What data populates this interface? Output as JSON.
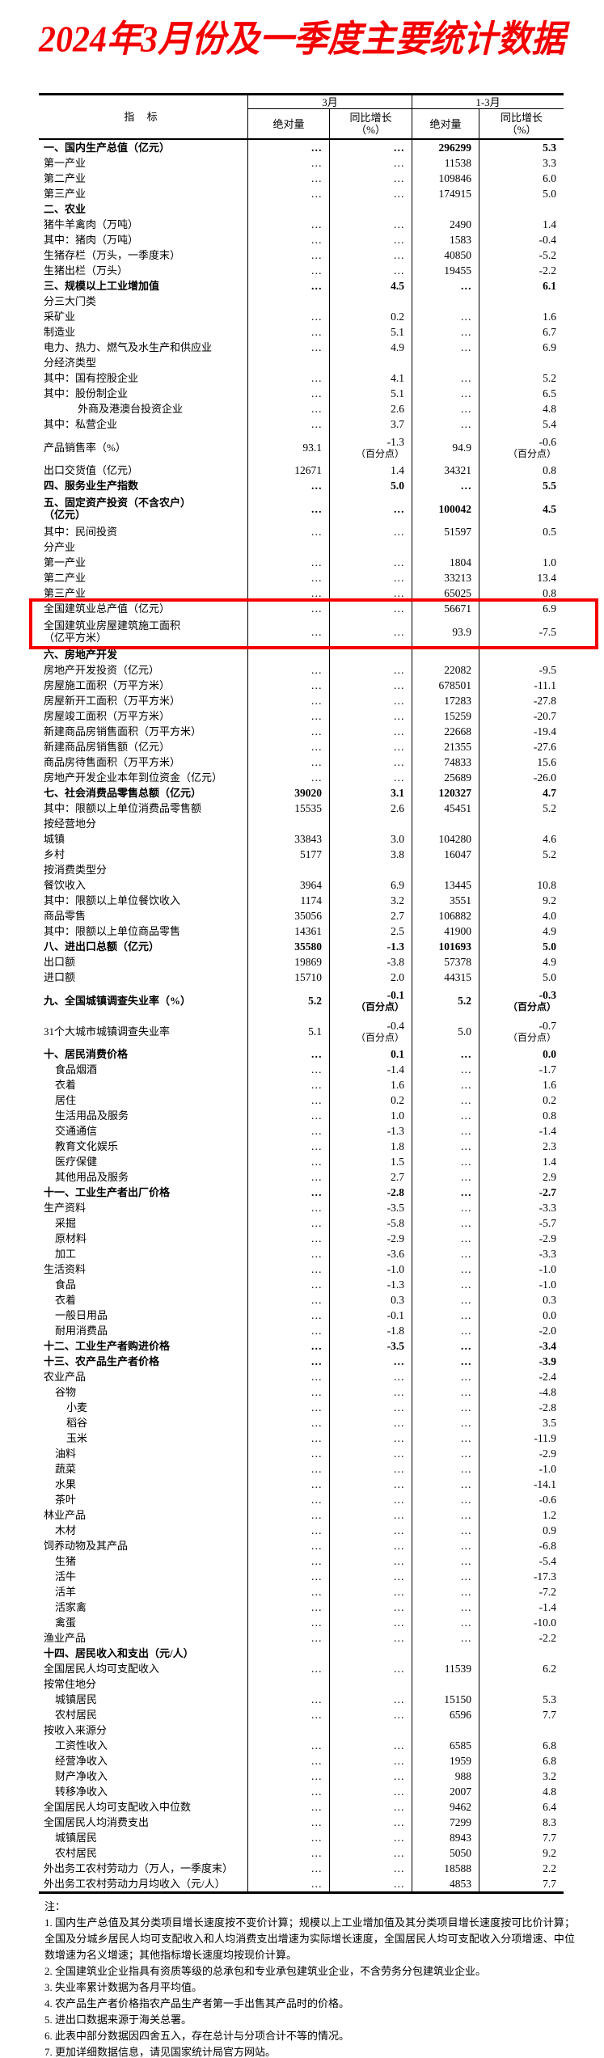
{
  "title": "2024年3月份及一季度主要统计数据",
  "colors": {
    "accent_red": "#f40000",
    "highlight_box_red": "#f40000",
    "text": "#000000",
    "background": "#ffffff"
  },
  "table": {
    "header": {
      "indicator": "指 标",
      "month": "3月",
      "quarter": "1-3月",
      "abs_month": "绝对量",
      "yoy_line1": "同比增长",
      "yoy_line2": "（%）",
      "abs_quarter": "绝对量"
    },
    "rows": [
      {
        "label": "一、国内生产总值（亿元）",
        "bold": true,
        "m_abs": "…",
        "m_yoy": "…",
        "q_abs": "296299",
        "q_yoy": "5.3"
      },
      {
        "label": "第一产业",
        "m_abs": "…",
        "m_yoy": "…",
        "q_abs": "11538",
        "q_yoy": "3.3"
      },
      {
        "label": "第二产业",
        "m_abs": "…",
        "m_yoy": "…",
        "q_abs": "109846",
        "q_yoy": "6.0"
      },
      {
        "label": "第三产业",
        "m_abs": "…",
        "m_yoy": "…",
        "q_abs": "174915",
        "q_yoy": "5.0"
      },
      {
        "label": "二、农业",
        "bold": true,
        "m_abs": "",
        "m_yoy": "",
        "q_abs": "",
        "q_yoy": ""
      },
      {
        "label": "猪牛羊禽肉（万吨）",
        "m_abs": "…",
        "m_yoy": "…",
        "q_abs": "2490",
        "q_yoy": "1.4"
      },
      {
        "label": "其中：猪肉（万吨）",
        "m_abs": "…",
        "m_yoy": "…",
        "q_abs": "1583",
        "q_yoy": "-0.4"
      },
      {
        "label": "生猪存栏（万头，一季度末）",
        "m_abs": "…",
        "m_yoy": "…",
        "q_abs": "40850",
        "q_yoy": "-5.2"
      },
      {
        "label": "生猪出栏（万头）",
        "m_abs": "…",
        "m_yoy": "…",
        "q_abs": "19455",
        "q_yoy": "-2.2"
      },
      {
        "label": "三、规模以上工业增加值",
        "bold": true,
        "m_abs": "…",
        "m_yoy": "4.5",
        "q_abs": "…",
        "q_yoy": "6.1"
      },
      {
        "label": "分三大门类",
        "m_abs": "",
        "m_yoy": "",
        "q_abs": "",
        "q_yoy": ""
      },
      {
        "label": "采矿业",
        "m_abs": "…",
        "m_yoy": "0.2",
        "q_abs": "…",
        "q_yoy": "1.6"
      },
      {
        "label": "制造业",
        "m_abs": "…",
        "m_yoy": "5.1",
        "q_abs": "…",
        "q_yoy": "6.7"
      },
      {
        "label": "电力、热力、燃气及水生产和供应业",
        "m_abs": "…",
        "m_yoy": "4.9",
        "q_abs": "…",
        "q_yoy": "6.9"
      },
      {
        "label": "分经济类型",
        "m_abs": "",
        "m_yoy": "",
        "q_abs": "",
        "q_yoy": ""
      },
      {
        "label": "其中：国有控股企业",
        "m_abs": "…",
        "m_yoy": "4.1",
        "q_abs": "…",
        "q_yoy": "5.2"
      },
      {
        "label": "其中：股份制企业",
        "m_abs": "…",
        "m_yoy": "5.1",
        "q_abs": "…",
        "q_yoy": "6.5"
      },
      {
        "label": "外商及港澳台投资企业",
        "indent": 3,
        "m_abs": "…",
        "m_yoy": "2.6",
        "q_abs": "…",
        "q_yoy": "4.8"
      },
      {
        "label": "其中：私营企业",
        "m_abs": "…",
        "m_yoy": "3.7",
        "q_abs": "…",
        "q_yoy": "5.4"
      },
      {
        "label": "产品销售率（%）",
        "m_abs": "93.1",
        "m_yoy": "-1.3",
        "m_sub": "（百分点）",
        "q_abs": "94.9",
        "q_yoy": "-0.6",
        "q_sub": "（百分点）"
      },
      {
        "label": "出口交货值（亿元）",
        "m_abs": "12671",
        "m_yoy": "1.4",
        "q_abs": "34321",
        "q_yoy": "0.8"
      },
      {
        "label": "四、服务业生产指数",
        "bold": true,
        "m_abs": "…",
        "m_yoy": "5.0",
        "q_abs": "…",
        "q_yoy": "5.5"
      },
      {
        "label": "五、固定资产投资（不含农户）",
        "label2": "（亿元）",
        "bold": true,
        "m_abs": "…",
        "m_yoy": "…",
        "q_abs": "100042",
        "q_yoy": "4.5"
      },
      {
        "label": "其中：民间投资",
        "m_abs": "…",
        "m_yoy": "…",
        "q_abs": "51597",
        "q_yoy": "0.5"
      },
      {
        "label": "分产业",
        "m_abs": "",
        "m_yoy": "",
        "q_abs": "",
        "q_yoy": ""
      },
      {
        "label": "第一产业",
        "m_abs": "…",
        "m_yoy": "…",
        "q_abs": "1804",
        "q_yoy": "1.0"
      },
      {
        "label": "第二产业",
        "m_abs": "…",
        "m_yoy": "…",
        "q_abs": "33213",
        "q_yoy": "13.4"
      },
      {
        "label": "第三产业",
        "m_abs": "…",
        "m_yoy": "…",
        "q_abs": "65025",
        "q_yoy": "0.8"
      },
      {
        "label": "全国建筑业总产值（亿元）",
        "hl": true,
        "m_abs": "…",
        "m_yoy": "…",
        "q_abs": "56671",
        "q_yoy": "6.9"
      },
      {
        "label": "全国建筑业房屋建筑施工面积",
        "label2": "（亿平方米）",
        "hl": true,
        "m_abs": "…",
        "m_yoy": "…",
        "q_abs": "93.9",
        "q_yoy": "-7.5"
      },
      {
        "label": "六、房地产开发",
        "bold": true,
        "m_abs": "",
        "m_yoy": "",
        "q_abs": "",
        "q_yoy": ""
      },
      {
        "label": "房地产开发投资（亿元）",
        "m_abs": "…",
        "m_yoy": "…",
        "q_abs": "22082",
        "q_yoy": "-9.5"
      },
      {
        "label": "房屋施工面积（万平方米）",
        "m_abs": "…",
        "m_yoy": "…",
        "q_abs": "678501",
        "q_yoy": "-11.1"
      },
      {
        "label": "房屋新开工面积（万平方米）",
        "m_abs": "…",
        "m_yoy": "…",
        "q_abs": "17283",
        "q_yoy": "-27.8"
      },
      {
        "label": "房屋竣工面积（万平方米）",
        "m_abs": "…",
        "m_yoy": "…",
        "q_abs": "15259",
        "q_yoy": "-20.7"
      },
      {
        "label": "新建商品房销售面积（万平方米）",
        "m_abs": "…",
        "m_yoy": "…",
        "q_abs": "22668",
        "q_yoy": "-19.4"
      },
      {
        "label": "新建商品房销售额（亿元）",
        "m_abs": "…",
        "m_yoy": "…",
        "q_abs": "21355",
        "q_yoy": "-27.6"
      },
      {
        "label": "商品房待售面积（万平方米）",
        "m_abs": "…",
        "m_yoy": "…",
        "q_abs": "74833",
        "q_yoy": "15.6"
      },
      {
        "label": "房地产开发企业本年到位资金（亿元）",
        "m_abs": "…",
        "m_yoy": "…",
        "q_abs": "25689",
        "q_yoy": "-26.0"
      },
      {
        "label": "七、社会消费品零售总额（亿元）",
        "bold": true,
        "m_abs": "39020",
        "m_yoy": "3.1",
        "q_abs": "120327",
        "q_yoy": "4.7"
      },
      {
        "label": "其中：限额以上单位消费品零售额",
        "m_abs": "15535",
        "m_yoy": "2.6",
        "q_abs": "45451",
        "q_yoy": "5.2"
      },
      {
        "label": "按经营地分",
        "m_abs": "",
        "m_yoy": "",
        "q_abs": "",
        "q_yoy": ""
      },
      {
        "label": "城镇",
        "m_abs": "33843",
        "m_yoy": "3.0",
        "q_abs": "104280",
        "q_yoy": "4.6"
      },
      {
        "label": "乡村",
        "m_abs": "5177",
        "m_yoy": "3.8",
        "q_abs": "16047",
        "q_yoy": "5.2"
      },
      {
        "label": "按消费类型分",
        "m_abs": "",
        "m_yoy": "",
        "q_abs": "",
        "q_yoy": ""
      },
      {
        "label": "餐饮收入",
        "m_abs": "3964",
        "m_yoy": "6.9",
        "q_abs": "13445",
        "q_yoy": "10.8"
      },
      {
        "label": "其中：限额以上单位餐饮收入",
        "m_abs": "1174",
        "m_yoy": "3.2",
        "q_abs": "3551",
        "q_yoy": "9.2"
      },
      {
        "label": "商品零售",
        "m_abs": "35056",
        "m_yoy": "2.7",
        "q_abs": "106882",
        "q_yoy": "4.0"
      },
      {
        "label": "其中：限额以上单位商品零售",
        "m_abs": "14361",
        "m_yoy": "2.5",
        "q_abs": "41900",
        "q_yoy": "4.9"
      },
      {
        "label": "八、进出口总额（亿元）",
        "bold": true,
        "m_abs": "35580",
        "m_yoy": "-1.3",
        "q_abs": "101693",
        "q_yoy": "5.0"
      },
      {
        "label": "出口额",
        "m_abs": "19869",
        "m_yoy": "-3.8",
        "q_abs": "57378",
        "q_yoy": "4.9"
      },
      {
        "label": "进口额",
        "m_abs": "15710",
        "m_yoy": "2.0",
        "q_abs": "44315",
        "q_yoy": "5.0"
      },
      {
        "label": "九、全国城镇调查失业率（%）",
        "bold": true,
        "m_abs": "5.2",
        "m_yoy": "-0.1",
        "m_sub": "（百分点）",
        "q_abs": "5.2",
        "q_yoy": "-0.3",
        "q_sub": "（百分点）"
      },
      {
        "label": "31个大城市城镇调查失业率",
        "m_abs": "5.1",
        "m_yoy": "-0.4",
        "m_sub": "（百分点）",
        "q_abs": "5.0",
        "q_yoy": "-0.7",
        "q_sub": "（百分点）"
      },
      {
        "label": "十、居民消费价格",
        "bold": true,
        "m_abs": "…",
        "m_yoy": "0.1",
        "q_abs": "…",
        "q_yoy": "0.0"
      },
      {
        "label": "食品烟酒",
        "indent": 1,
        "m_abs": "…",
        "m_yoy": "-1.4",
        "q_abs": "…",
        "q_yoy": "-1.7"
      },
      {
        "label": "衣着",
        "indent": 1,
        "m_abs": "…",
        "m_yoy": "1.6",
        "q_abs": "…",
        "q_yoy": "1.6"
      },
      {
        "label": "居住",
        "indent": 1,
        "m_abs": "…",
        "m_yoy": "0.2",
        "q_abs": "…",
        "q_yoy": "0.2"
      },
      {
        "label": "生活用品及服务",
        "indent": 1,
        "m_abs": "…",
        "m_yoy": "1.0",
        "q_abs": "…",
        "q_yoy": "0.8"
      },
      {
        "label": "交通通信",
        "indent": 1,
        "m_abs": "…",
        "m_yoy": "-1.3",
        "q_abs": "…",
        "q_yoy": "-1.4"
      },
      {
        "label": "教育文化娱乐",
        "indent": 1,
        "m_abs": "…",
        "m_yoy": "1.8",
        "q_abs": "…",
        "q_yoy": "2.3"
      },
      {
        "label": "医疗保健",
        "indent": 1,
        "m_abs": "…",
        "m_yoy": "1.5",
        "q_abs": "…",
        "q_yoy": "1.4"
      },
      {
        "label": "其他用品及服务",
        "indent": 1,
        "m_abs": "…",
        "m_yoy": "2.7",
        "q_abs": "…",
        "q_yoy": "2.9"
      },
      {
        "label": "十一、工业生产者出厂价格",
        "bold": true,
        "m_abs": "…",
        "m_yoy": "-2.8",
        "q_abs": "…",
        "q_yoy": "-2.7"
      },
      {
        "label": "生产资料",
        "m_abs": "…",
        "m_yoy": "-3.5",
        "q_abs": "…",
        "q_yoy": "-3.3"
      },
      {
        "label": "采掘",
        "indent": 1,
        "m_abs": "…",
        "m_yoy": "-5.8",
        "q_abs": "…",
        "q_yoy": "-5.7"
      },
      {
        "label": "原材料",
        "indent": 1,
        "m_abs": "…",
        "m_yoy": "-2.9",
        "q_abs": "…",
        "q_yoy": "-2.9"
      },
      {
        "label": "加工",
        "indent": 1,
        "m_abs": "…",
        "m_yoy": "-3.6",
        "q_abs": "…",
        "q_yoy": "-3.3"
      },
      {
        "label": "生活资料",
        "m_abs": "…",
        "m_yoy": "-1.0",
        "q_abs": "…",
        "q_yoy": "-1.0"
      },
      {
        "label": "食品",
        "indent": 1,
        "m_abs": "…",
        "m_yoy": "-1.3",
        "q_abs": "…",
        "q_yoy": "-1.0"
      },
      {
        "label": "衣着",
        "indent": 1,
        "m_abs": "…",
        "m_yoy": "0.3",
        "q_abs": "…",
        "q_yoy": "0.3"
      },
      {
        "label": "一般日用品",
        "indent": 1,
        "m_abs": "…",
        "m_yoy": "-0.1",
        "q_abs": "…",
        "q_yoy": "0.0"
      },
      {
        "label": "耐用消费品",
        "indent": 1,
        "m_abs": "…",
        "m_yoy": "-1.8",
        "q_abs": "…",
        "q_yoy": "-2.0"
      },
      {
        "label": "十二、工业生产者购进价格",
        "bold": true,
        "m_abs": "…",
        "m_yoy": "-3.5",
        "q_abs": "…",
        "q_yoy": "-3.4"
      },
      {
        "label": "十三、农产品生产者价格",
        "bold": true,
        "m_abs": "…",
        "m_yoy": "…",
        "q_abs": "…",
        "q_yoy": "-3.9"
      },
      {
        "label": "农业产品",
        "m_abs": "…",
        "m_yoy": "…",
        "q_abs": "…",
        "q_yoy": "-2.4"
      },
      {
        "label": "谷物",
        "indent": 1,
        "m_abs": "…",
        "m_yoy": "…",
        "q_abs": "…",
        "q_yoy": "-4.8"
      },
      {
        "label": "小麦",
        "indent": 2,
        "m_abs": "…",
        "m_yoy": "…",
        "q_abs": "…",
        "q_yoy": "-2.8"
      },
      {
        "label": "稻谷",
        "indent": 2,
        "m_abs": "…",
        "m_yoy": "…",
        "q_abs": "…",
        "q_yoy": "3.5"
      },
      {
        "label": "玉米",
        "indent": 2,
        "m_abs": "…",
        "m_yoy": "…",
        "q_abs": "…",
        "q_yoy": "-11.9"
      },
      {
        "label": "油料",
        "indent": 1,
        "m_abs": "…",
        "m_yoy": "…",
        "q_abs": "…",
        "q_yoy": "-2.9"
      },
      {
        "label": "蔬菜",
        "indent": 1,
        "m_abs": "…",
        "m_yoy": "…",
        "q_abs": "…",
        "q_yoy": "-1.0"
      },
      {
        "label": "水果",
        "indent": 1,
        "m_abs": "…",
        "m_yoy": "…",
        "q_abs": "…",
        "q_yoy": "-14.1"
      },
      {
        "label": "茶叶",
        "indent": 1,
        "m_abs": "…",
        "m_yoy": "…",
        "q_abs": "…",
        "q_yoy": "-0.6"
      },
      {
        "label": "林业产品",
        "m_abs": "…",
        "m_yoy": "…",
        "q_abs": "…",
        "q_yoy": "1.2"
      },
      {
        "label": "木材",
        "indent": 1,
        "m_abs": "…",
        "m_yoy": "…",
        "q_abs": "…",
        "q_yoy": "0.9"
      },
      {
        "label": "饲养动物及其产品",
        "m_abs": "…",
        "m_yoy": "…",
        "q_abs": "…",
        "q_yoy": "-6.8"
      },
      {
        "label": "生猪",
        "indent": 1,
        "m_abs": "…",
        "m_yoy": "…",
        "q_abs": "…",
        "q_yoy": "-5.4"
      },
      {
        "label": "活牛",
        "indent": 1,
        "m_abs": "…",
        "m_yoy": "…",
        "q_abs": "…",
        "q_yoy": "-17.3"
      },
      {
        "label": "活羊",
        "indent": 1,
        "m_abs": "…",
        "m_yoy": "…",
        "q_abs": "…",
        "q_yoy": "-7.2"
      },
      {
        "label": "活家禽",
        "indent": 1,
        "m_abs": "…",
        "m_yoy": "…",
        "q_abs": "…",
        "q_yoy": "-1.4"
      },
      {
        "label": "禽蛋",
        "indent": 1,
        "m_abs": "…",
        "m_yoy": "…",
        "q_abs": "…",
        "q_yoy": "-10.0"
      },
      {
        "label": "渔业产品",
        "m_abs": "…",
        "m_yoy": "…",
        "q_abs": "…",
        "q_yoy": "-2.2"
      },
      {
        "label": "十四、居民收入和支出（元/人）",
        "bold": true,
        "m_abs": "",
        "m_yoy": "",
        "q_abs": "",
        "q_yoy": ""
      },
      {
        "label": "全国居民人均可支配收入",
        "m_abs": "…",
        "m_yoy": "…",
        "q_abs": "11539",
        "q_yoy": "6.2"
      },
      {
        "label": "按常住地分",
        "m_abs": "",
        "m_yoy": "",
        "q_abs": "",
        "q_yoy": ""
      },
      {
        "label": "城镇居民",
        "indent": 1,
        "m_abs": "…",
        "m_yoy": "…",
        "q_abs": "15150",
        "q_yoy": "5.3"
      },
      {
        "label": "农村居民",
        "indent": 1,
        "m_abs": "…",
        "m_yoy": "…",
        "q_abs": "6596",
        "q_yoy": "7.7"
      },
      {
        "label": "按收入来源分",
        "m_abs": "",
        "m_yoy": "",
        "q_abs": "",
        "q_yoy": ""
      },
      {
        "label": "工资性收入",
        "indent": 1,
        "m_abs": "…",
        "m_yoy": "…",
        "q_abs": "6585",
        "q_yoy": "6.8"
      },
      {
        "label": "经营净收入",
        "indent": 1,
        "m_abs": "…",
        "m_yoy": "…",
        "q_abs": "1959",
        "q_yoy": "6.8"
      },
      {
        "label": "财产净收入",
        "indent": 1,
        "m_abs": "…",
        "m_yoy": "…",
        "q_abs": "988",
        "q_yoy": "3.2"
      },
      {
        "label": "转移净收入",
        "indent": 1,
        "m_abs": "…",
        "m_yoy": "…",
        "q_abs": "2007",
        "q_yoy": "4.8"
      },
      {
        "label": "全国居民人均可支配收入中位数",
        "m_abs": "…",
        "m_yoy": "…",
        "q_abs": "9462",
        "q_yoy": "6.4"
      },
      {
        "label": "全国居民人均消费支出",
        "m_abs": "…",
        "m_yoy": "…",
        "q_abs": "7299",
        "q_yoy": "8.3"
      },
      {
        "label": "城镇居民",
        "indent": 1,
        "m_abs": "…",
        "m_yoy": "…",
        "q_abs": "8943",
        "q_yoy": "7.7"
      },
      {
        "label": "农村居民",
        "indent": 1,
        "m_abs": "…",
        "m_yoy": "…",
        "q_abs": "5050",
        "q_yoy": "9.2"
      },
      {
        "label": "外出务工农村劳动力（万人，一季度末）",
        "m_abs": "…",
        "m_yoy": "…",
        "q_abs": "18588",
        "q_yoy": "2.2"
      },
      {
        "label": "外出务工农村劳动力月均收入（元/人）",
        "m_abs": "…",
        "m_yoy": "…",
        "q_abs": "4853",
        "q_yoy": "7.7"
      }
    ]
  },
  "notes": {
    "label": "注：",
    "items": [
      "1. 国内生产总值及其分类项目增长速度按不变价计算；规模以上工业增加值及其分类项目增长速度按可比价计算；全国及分城乡居民人均可支配收入和人均消费支出增速为实际增长速度，全国居民人均可支配收入分项增速、中位数增速为名义增速；其他指标增长速度均按现价计算。",
      "2. 全国建筑业企业指具有资质等级的总承包和专业承包建筑业企业，不含劳务分包建筑业企业。",
      "3. 失业率累计数据为各月平均值。",
      "4. 农产品生产者价格指农产品生产者第一手出售其产品时的价格。",
      "5. 进出口数据来源于海关总署。",
      "6. 此表中部分数据因四舍五入，存在总计与分项合计不等的情况。",
      "7. 更加详细数据信息，请见国家统计局官方网站。"
    ]
  }
}
